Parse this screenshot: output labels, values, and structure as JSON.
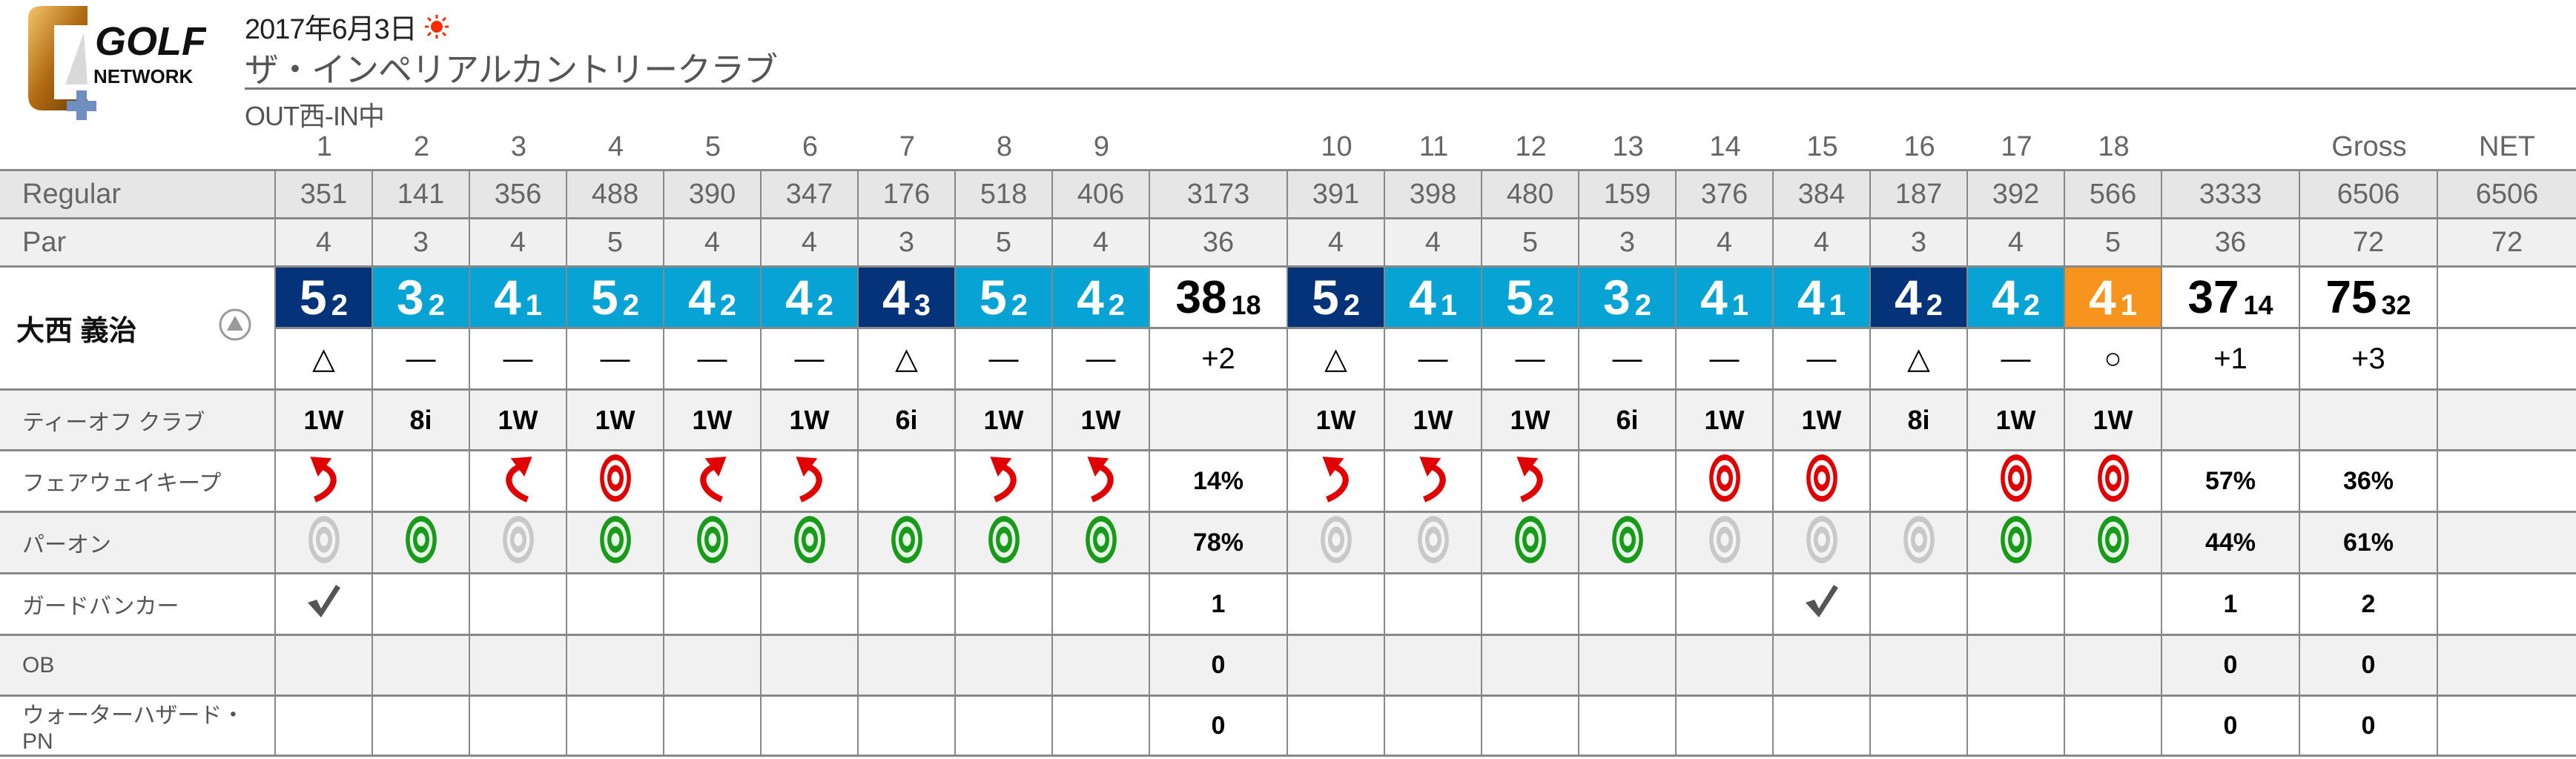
{
  "logo": {
    "line1": "GOLF",
    "line2": "NETWORK"
  },
  "header": {
    "date": "2017年6月3日",
    "weather_icon": "sun-icon",
    "course": "ザ・インペリアルカントリークラブ",
    "route": "OUT西-IN中"
  },
  "colors": {
    "bogey": "#04337a",
    "par": "#06a3d4",
    "birdie": "#f7941d",
    "fairway": "#e00000",
    "green_on": "#1a9a1a",
    "green_off": "#c8c8c8",
    "grid": "#888888"
  },
  "columns": {
    "holes": [
      "1",
      "2",
      "3",
      "4",
      "5",
      "6",
      "7",
      "8",
      "9",
      "10",
      "11",
      "12",
      "13",
      "14",
      "15",
      "16",
      "17",
      "18"
    ],
    "out": "",
    "in": "",
    "gross": "Gross",
    "net": "NET"
  },
  "regular": {
    "label": "Regular",
    "holes": [
      "351",
      "141",
      "356",
      "488",
      "390",
      "347",
      "176",
      "518",
      "406",
      "391",
      "398",
      "480",
      "159",
      "376",
      "384",
      "187",
      "392",
      "566"
    ],
    "out": "3173",
    "in": "3333",
    "gross": "6506",
    "net": "6506"
  },
  "par": {
    "label": "Par",
    "holes": [
      "4",
      "3",
      "4",
      "5",
      "4",
      "4",
      "3",
      "5",
      "4",
      "4",
      "4",
      "5",
      "3",
      "4",
      "4",
      "3",
      "4",
      "5"
    ],
    "out": "36",
    "in": "36",
    "gross": "72",
    "net": "72"
  },
  "player": {
    "name": "大西 義治",
    "toggle_icon": "up-triangle-circle-icon",
    "scores": [
      {
        "strokes": "5",
        "putts": "2",
        "result": "bogey"
      },
      {
        "strokes": "3",
        "putts": "2",
        "result": "par"
      },
      {
        "strokes": "4",
        "putts": "1",
        "result": "par"
      },
      {
        "strokes": "5",
        "putts": "2",
        "result": "par"
      },
      {
        "strokes": "4",
        "putts": "2",
        "result": "par"
      },
      {
        "strokes": "4",
        "putts": "2",
        "result": "par"
      },
      {
        "strokes": "4",
        "putts": "3",
        "result": "bogey"
      },
      {
        "strokes": "5",
        "putts": "2",
        "result": "par"
      },
      {
        "strokes": "4",
        "putts": "2",
        "result": "par"
      },
      {
        "strokes": "5",
        "putts": "2",
        "result": "bogey"
      },
      {
        "strokes": "4",
        "putts": "1",
        "result": "par"
      },
      {
        "strokes": "5",
        "putts": "2",
        "result": "par"
      },
      {
        "strokes": "3",
        "putts": "2",
        "result": "par"
      },
      {
        "strokes": "4",
        "putts": "1",
        "result": "par"
      },
      {
        "strokes": "4",
        "putts": "1",
        "result": "par"
      },
      {
        "strokes": "4",
        "putts": "2",
        "result": "bogey"
      },
      {
        "strokes": "4",
        "putts": "2",
        "result": "par"
      },
      {
        "strokes": "4",
        "putts": "1",
        "result": "birdie"
      }
    ],
    "out": {
      "strokes": "38",
      "putts": "18"
    },
    "in": {
      "strokes": "37",
      "putts": "14"
    },
    "gross": {
      "strokes": "75",
      "putts": "32"
    },
    "net": "",
    "marks": [
      "△",
      "—",
      "—",
      "—",
      "—",
      "—",
      "△",
      "—",
      "—",
      "△",
      "—",
      "—",
      "—",
      "—",
      "—",
      "△",
      "—",
      "○"
    ],
    "marks_out": "+2",
    "marks_in": "+1",
    "marks_gross": "+3",
    "marks_net": ""
  },
  "stats": [
    {
      "key": "club",
      "label": "ティーオフ クラブ",
      "holes": [
        "1W",
        "8i",
        "1W",
        "1W",
        "1W",
        "1W",
        "6i",
        "1W",
        "1W",
        "1W",
        "1W",
        "1W",
        "6i",
        "1W",
        "1W",
        "8i",
        "1W",
        "1W"
      ],
      "out": "",
      "in": "",
      "gross": "",
      "net": ""
    },
    {
      "key": "fairway",
      "label": "フェアウェイキープ",
      "holes": [
        "miss-left",
        "",
        "miss-right",
        "hit",
        "miss-right",
        "miss-left",
        "",
        "miss-left",
        "miss-left",
        "miss-left",
        "miss-left",
        "miss-left",
        "",
        "hit",
        "hit",
        "",
        "hit",
        "hit"
      ],
      "out": "14%",
      "in": "57%",
      "gross": "36%",
      "net": ""
    },
    {
      "key": "paron",
      "label": "パーオン",
      "holes": [
        "miss",
        "hit",
        "miss",
        "hit",
        "hit",
        "hit",
        "hit",
        "hit",
        "hit",
        "miss",
        "miss",
        "hit",
        "hit",
        "miss",
        "miss",
        "miss",
        "hit",
        "hit"
      ],
      "out": "78%",
      "in": "44%",
      "gross": "61%",
      "net": ""
    },
    {
      "key": "bunker",
      "label": "ガードバンカー",
      "holes": [
        "check",
        "",
        "",
        "",
        "",
        "",
        "",
        "",
        "",
        "",
        "",
        "",
        "",
        "",
        "check",
        "",
        "",
        ""
      ],
      "out": "1",
      "in": "1",
      "gross": "2",
      "net": ""
    },
    {
      "key": "ob",
      "label": "OB",
      "holes": [
        "",
        "",
        "",
        "",
        "",
        "",
        "",
        "",
        "",
        "",
        "",
        "",
        "",
        "",
        "",
        "",
        "",
        ""
      ],
      "out": "0",
      "in": "0",
      "gross": "0",
      "net": ""
    },
    {
      "key": "water",
      "label": "ウォーターハザード・PN",
      "holes": [
        "",
        "",
        "",
        "",
        "",
        "",
        "",
        "",
        "",
        "",
        "",
        "",
        "",
        "",
        "",
        "",
        "",
        ""
      ],
      "out": "0",
      "in": "0",
      "gross": "0",
      "net": ""
    }
  ]
}
